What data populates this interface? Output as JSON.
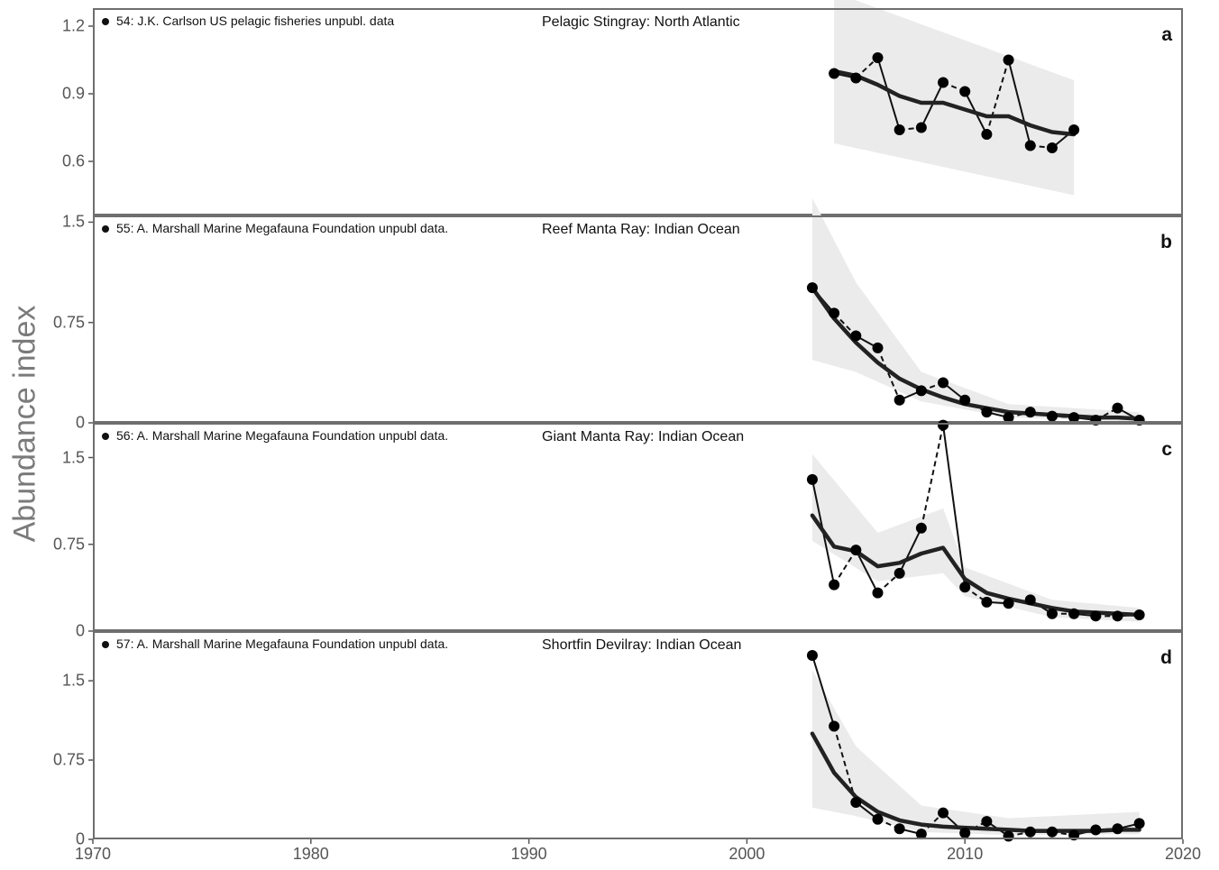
{
  "y_axis_title": "Abundance index",
  "chart_data": [
    {
      "type": "line",
      "panel": "a",
      "title": "Pelagic Stingray: North Atlantic",
      "legend": "54: J.K. Carlson US pelagic fisheries unpubl. data",
      "ylim": [
        0.36,
        1.28
      ],
      "yticks": [
        0.6,
        0.9,
        1.2
      ],
      "ytick_labels": [
        "0.6",
        "0.9",
        "1.2"
      ],
      "xlim": [
        1970,
        2020
      ],
      "observed": {
        "x": [
          2004,
          2005,
          2006,
          2007,
          2008,
          2009,
          2010,
          2011,
          2012,
          2013,
          2014,
          2015
        ],
        "y": [
          0.99,
          0.97,
          1.06,
          0.74,
          0.75,
          0.95,
          0.91,
          0.72,
          1.05,
          0.67,
          0.66,
          0.74
        ]
      },
      "trend": {
        "x": [
          2004,
          2005,
          2006,
          2007,
          2008,
          2009,
          2010,
          2011,
          2012,
          2013,
          2014,
          2015
        ],
        "y": [
          1.0,
          0.98,
          0.94,
          0.89,
          0.86,
          0.86,
          0.83,
          0.8,
          0.8,
          0.76,
          0.73,
          0.72
        ]
      },
      "ci": {
        "x": [
          2004,
          2015
        ],
        "lower": [
          0.68,
          0.45
        ],
        "upper": [
          1.35,
          0.96
        ]
      }
    },
    {
      "type": "line",
      "panel": "b",
      "title": "Reef Manta Ray: Indian Ocean",
      "legend": "55: A. Marshall Marine Megafauna Foundation unpubl data.",
      "ylim": [
        0,
        1.55
      ],
      "yticks": [
        0,
        0.75,
        1.5
      ],
      "ytick_labels": [
        "0",
        "0.75",
        "1.5"
      ],
      "xlim": [
        1970,
        2020
      ],
      "observed": {
        "x": [
          2003,
          2004,
          2005,
          2006,
          2007,
          2008,
          2009,
          2010,
          2011,
          2012,
          2013,
          2014,
          2015,
          2016,
          2017,
          2018
        ],
        "y": [
          1.01,
          0.82,
          0.65,
          0.56,
          0.17,
          0.24,
          0.3,
          0.17,
          0.08,
          0.04,
          0.08,
          0.05,
          0.04,
          0.02,
          0.11,
          0.02
        ]
      },
      "trend": {
        "x": [
          2003,
          2004,
          2005,
          2006,
          2007,
          2008,
          2009,
          2010,
          2011,
          2012,
          2013,
          2014,
          2015,
          2016,
          2017,
          2018
        ],
        "y": [
          1.01,
          0.78,
          0.6,
          0.45,
          0.33,
          0.25,
          0.19,
          0.14,
          0.11,
          0.08,
          0.07,
          0.06,
          0.05,
          0.04,
          0.04,
          0.03
        ]
      },
      "ci": {
        "x": [
          2003,
          2005,
          2008,
          2012,
          2018
        ],
        "lower": [
          0.47,
          0.38,
          0.16,
          0.04,
          0.01
        ],
        "upper": [
          1.68,
          1.05,
          0.38,
          0.14,
          0.08
        ]
      }
    },
    {
      "type": "line",
      "panel": "c",
      "title": "Giant Manta Ray: Indian Ocean",
      "legend": "56: A. Marshall Marine Megafauna Foundation unpubl data.",
      "ylim": [
        0,
        1.8
      ],
      "yticks": [
        0,
        0.75,
        1.5
      ],
      "ytick_labels": [
        "0",
        "0.75",
        "1.5"
      ],
      "xlim": [
        1970,
        2020
      ],
      "observed": {
        "x": [
          2003,
          2004,
          2005,
          2006,
          2007,
          2008,
          2009,
          2010,
          2011,
          2012,
          2013,
          2014,
          2015,
          2016,
          2017,
          2018
        ],
        "y": [
          1.31,
          0.4,
          0.7,
          0.33,
          0.5,
          0.89,
          1.78,
          0.38,
          0.25,
          0.24,
          0.27,
          0.15,
          0.15,
          0.13,
          0.13,
          0.14
        ]
      },
      "trend": {
        "x": [
          2003,
          2004,
          2005,
          2006,
          2007,
          2008,
          2009,
          2010,
          2011,
          2012,
          2013,
          2014,
          2015,
          2016,
          2017,
          2018
        ],
        "y": [
          1.0,
          0.73,
          0.69,
          0.56,
          0.59,
          0.67,
          0.72,
          0.45,
          0.33,
          0.28,
          0.24,
          0.2,
          0.17,
          0.16,
          0.15,
          0.14
        ]
      },
      "ci": {
        "x": [
          2003,
          2006,
          2009,
          2010,
          2014,
          2018
        ],
        "lower": [
          0.78,
          0.43,
          0.5,
          0.3,
          0.12,
          0.08
        ],
        "upper": [
          1.53,
          0.85,
          1.06,
          0.55,
          0.27,
          0.2
        ]
      }
    },
    {
      "type": "line",
      "panel": "d",
      "title": "Shortfin Devilray: Indian Ocean",
      "legend": "57: A. Marshall Marine Megafauna Foundation unpubl data.",
      "ylim": [
        0,
        1.97
      ],
      "yticks": [
        0,
        0.75,
        1.5
      ],
      "ytick_labels": [
        "0",
        "0.75",
        "1.5"
      ],
      "xlim": [
        1970,
        2020
      ],
      "xticks": [
        1970,
        1980,
        1990,
        2000,
        2010,
        2020
      ],
      "xtick_labels": [
        "1970",
        "1980",
        "1990",
        "2000",
        "2010",
        "2020"
      ],
      "observed": {
        "x": [
          2003,
          2004,
          2005,
          2006,
          2007,
          2008,
          2009,
          2010,
          2011,
          2012,
          2013,
          2014,
          2015,
          2016,
          2017,
          2018
        ],
        "y": [
          1.74,
          1.07,
          0.35,
          0.19,
          0.1,
          0.05,
          0.25,
          0.06,
          0.17,
          0.03,
          0.07,
          0.07,
          0.04,
          0.09,
          0.1,
          0.15
        ]
      },
      "trend": {
        "x": [
          2003,
          2004,
          2005,
          2006,
          2007,
          2008,
          2009,
          2010,
          2011,
          2012,
          2013,
          2014,
          2015,
          2016,
          2017,
          2018
        ],
        "y": [
          1.0,
          0.63,
          0.4,
          0.26,
          0.18,
          0.14,
          0.12,
          0.11,
          0.1,
          0.09,
          0.08,
          0.08,
          0.08,
          0.08,
          0.09,
          0.09
        ]
      },
      "ci": {
        "x": [
          2003,
          2005,
          2008,
          2012,
          2018
        ],
        "lower": [
          0.3,
          0.22,
          0.07,
          0.04,
          0.05
        ],
        "upper": [
          1.6,
          0.88,
          0.32,
          0.2,
          0.26
        ]
      }
    }
  ]
}
